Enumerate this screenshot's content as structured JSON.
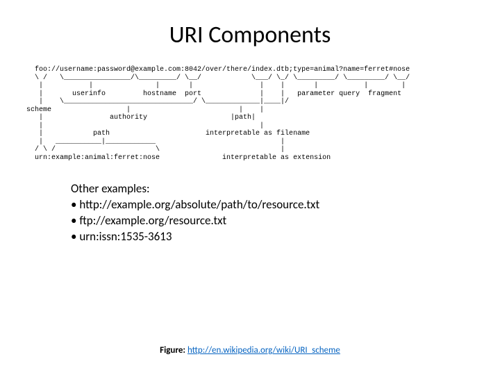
{
  "title": "URI Components",
  "ascii_diagram": "  foo://username:password@example.com:8042/over/there/index.dtb;type=animal?name=ferret#nose\n  \\ /   \\________________/\\_________/ \\__/            \\___/ \\_/ \\_________/ \\_________/ \\__/\n   |           |               |       |                |    |       |           |        |\n   |       userinfo         hostname  port              |    |   parameter query  fragment\n   |    \\_______________________________/ \\_____________|____|/\nscheme                  |                          |    |\n   |                authority                    |path|\n   |                                                    |\n   |            path                       interpretable as filename\n   |   ___________|____________                              |\n  / \\ /                        \\                             |\n  urn:example:animal:ferret:nose               interpretable as extension",
  "examples": {
    "heading": "Other examples:",
    "bullet": "•",
    "items": [
      "http://example.org/absolute/path/to/resource.txt",
      "ftp://example.org/resource.txt",
      "urn:issn:1535-3613"
    ]
  },
  "figure": {
    "label": "Figure:",
    "link_text": "http://en.wikipedia.org/wiki/URI_scheme",
    "link_href": "http://en.wikipedia.org/wiki/URI_scheme"
  },
  "colors": {
    "background": "#ffffff",
    "text": "#000000",
    "link": "#0563c1"
  }
}
